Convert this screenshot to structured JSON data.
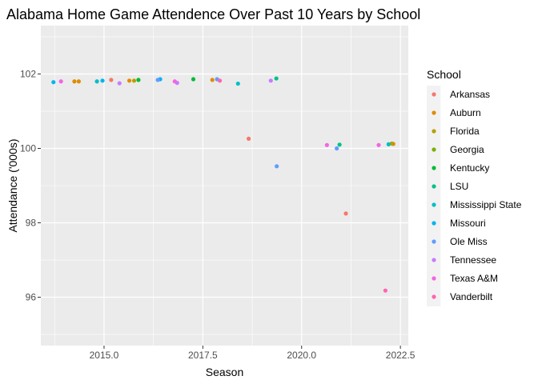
{
  "chart_data": {
    "type": "scatter",
    "title": "Alabama Home Game Attendence Over Past 10 Years by School",
    "xlabel": "Season",
    "ylabel": "Attendance ('000s)",
    "xlim": [
      2013.4,
      2022.7
    ],
    "ylim": [
      94.7,
      103.3
    ],
    "x_ticks": [
      2015.0,
      2017.5,
      2020.0,
      2022.5
    ],
    "x_tick_labels": [
      "2015.0",
      "2017.5",
      "2020.0",
      "2022.5"
    ],
    "y_ticks": [
      96,
      98,
      100,
      102
    ],
    "y_tick_labels": [
      "96",
      "98",
      "100",
      "102"
    ],
    "grid": true,
    "panel_background": "#ebebeb",
    "legend": {
      "title": "School",
      "placement": "right"
    },
    "series": [
      {
        "name": "Arkansas",
        "color": "#F8766D",
        "points": [
          [
            2015.18,
            101.84
          ],
          [
            2018.66,
            100.26
          ],
          [
            2021.12,
            98.25
          ]
        ]
      },
      {
        "name": "Auburn",
        "color": "#DE8C00",
        "points": [
          [
            2014.25,
            101.8
          ],
          [
            2014.36,
            101.8
          ],
          [
            2015.64,
            101.82
          ],
          [
            2017.74,
            101.84
          ],
          [
            2022.32,
            100.12
          ]
        ]
      },
      {
        "name": "Florida",
        "color": "#B79F00",
        "points": [
          [
            2015.76,
            101.82
          ],
          [
            2022.28,
            100.13
          ]
        ]
      },
      {
        "name": "Georgia",
        "color": "#7CAE00",
        "points": []
      },
      {
        "name": "Kentucky",
        "color": "#00BA38",
        "points": [
          [
            2015.87,
            101.84
          ],
          [
            2017.26,
            101.86
          ]
        ]
      },
      {
        "name": "LSU",
        "color": "#00C08B",
        "points": [
          [
            2019.36,
            101.88
          ],
          [
            2020.96,
            100.1
          ]
        ]
      },
      {
        "name": "Mississippi State",
        "color": "#00BFC4",
        "points": [
          [
            2014.82,
            101.8
          ],
          [
            2018.39,
            101.74
          ],
          [
            2022.2,
            100.11
          ]
        ]
      },
      {
        "name": "Missouri",
        "color": "#00B4F0",
        "points": [
          [
            2013.72,
            101.78
          ],
          [
            2014.96,
            101.82
          ],
          [
            2016.42,
            101.86
          ]
        ]
      },
      {
        "name": "Ole Miss",
        "color": "#619CFF",
        "points": [
          [
            2016.36,
            101.84
          ],
          [
            2017.86,
            101.86
          ],
          [
            2019.37,
            99.52
          ],
          [
            2020.89,
            100.0
          ]
        ]
      },
      {
        "name": "Tennessee",
        "color": "#C77CFF",
        "points": [
          [
            2015.39,
            101.75
          ],
          [
            2016.85,
            101.76
          ],
          [
            2019.22,
            101.82
          ]
        ]
      },
      {
        "name": "Texas A&M",
        "color": "#F564E3",
        "points": [
          [
            2013.91,
            101.8
          ],
          [
            2016.79,
            101.8
          ],
          [
            2020.64,
            100.09
          ],
          [
            2021.95,
            100.09
          ]
        ]
      },
      {
        "name": "Vanderbilt",
        "color": "#FF64B0",
        "points": [
          [
            2017.93,
            101.82
          ],
          [
            2022.12,
            96.18
          ]
        ]
      }
    ]
  }
}
